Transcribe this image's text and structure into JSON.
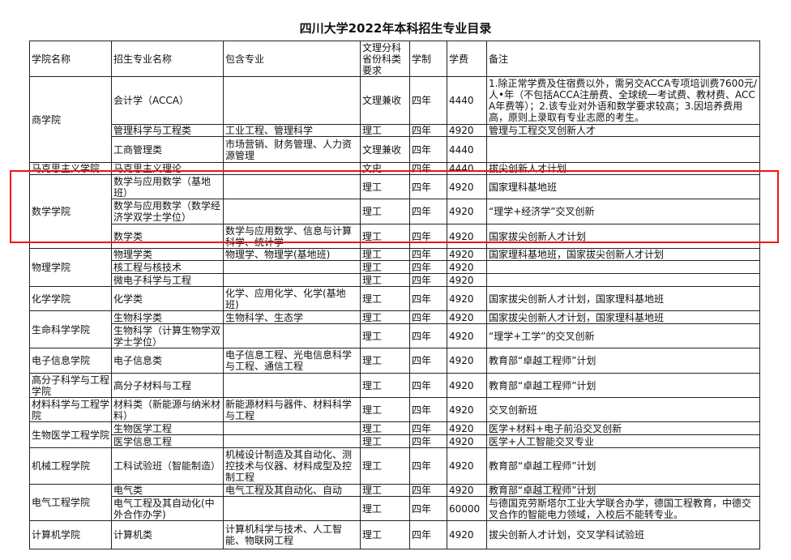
{
  "title": "四川大学2022年本科招生专业目录",
  "headers": [
    "学院名称",
    "招生专业名称",
    "包含专业",
    "文理分科省份科类要求",
    "学制",
    "学费",
    "备注"
  ],
  "highlight_color": "#f01414",
  "colleges": [
    {
      "name": "商学院",
      "majors": [
        {
          "major": "会计学（ACCA）",
          "includes": "",
          "category": "文理兼收",
          "duration": "四年",
          "fee": "4440",
          "note": "1.除正常学费及住宿费以外，需另交ACCA专项培训费7600元/人•年（不包括ACCA注册费、全球统一考试费、教材费、ACCA年费等）；2.该专业对外语和数学要求较高；3.因培养费用高，原则上录取有专业志愿的考生。"
        },
        {
          "major": "管理科学与工程类",
          "includes": "工业工程、管理科学",
          "category": "理工",
          "duration": "四年",
          "fee": "4920",
          "note": "管理与工程交叉创新人才"
        },
        {
          "major": "工商管理类",
          "includes": "市场营销、财务管理、人力资源管理",
          "category": "文理兼收",
          "duration": "四年",
          "fee": "4440",
          "note": ""
        }
      ]
    },
    {
      "name": "马克思主义学院",
      "majors": [
        {
          "major": "马克思主义理论",
          "includes": "",
          "category": "文史",
          "duration": "四年",
          "fee": "4440",
          "note": "拔尖创新人才计划"
        }
      ]
    },
    {
      "name": "数学学院",
      "majors": [
        {
          "major": "数学与应用数学（基地班）",
          "includes": "",
          "category": "理工",
          "duration": "四年",
          "fee": "4920",
          "note": "国家理科基地班"
        },
        {
          "major": "数学与应用数学（数学经济学双学士学位）",
          "includes": "",
          "category": "理工",
          "duration": "四年",
          "fee": "4920",
          "note": "“理学+经济学”交叉创新"
        },
        {
          "major": "数学类",
          "includes": "数学与应用数学、信息与计算科学、统计学",
          "category": "理工",
          "duration": "四年",
          "fee": "4920",
          "note": "国家拔尖创新人才计划"
        }
      ]
    },
    {
      "name": "物理学院",
      "majors": [
        {
          "major": "物理学类",
          "includes": "物理学、物理学(基地班)",
          "category": "理工",
          "duration": "四年",
          "fee": "4920",
          "note": "国家理科基地班，国家拔尖创新人才计划"
        },
        {
          "major": "核工程与核技术",
          "includes": "",
          "category": "理工",
          "duration": "四年",
          "fee": "4920",
          "note": ""
        },
        {
          "major": "微电子科学与工程",
          "includes": "",
          "category": "理工",
          "duration": "四年",
          "fee": "4920",
          "note": ""
        }
      ]
    },
    {
      "name": "化学学院",
      "majors": [
        {
          "major": "化学类",
          "includes": "化学、应用化学、化学(基地班)",
          "category": "理工",
          "duration": "四年",
          "fee": "4920",
          "note": "国家拔尖创新人才计划，国家理科基地班"
        }
      ]
    },
    {
      "name": "生命科学学院",
      "majors": [
        {
          "major": "生物科学类",
          "includes": "生物科学、生态学",
          "category": "理工",
          "duration": "四年",
          "fee": "4920",
          "note": "国家拔尖创新人才计划，国家理科基地班"
        },
        {
          "major": "生物科学（计算生物学双学士学位）",
          "includes": "",
          "category": "理工",
          "duration": "四年",
          "fee": "4920",
          "note": "“理学+工学”的交叉创新"
        }
      ]
    },
    {
      "name": "电子信息学院",
      "majors": [
        {
          "major": "电子信息类",
          "includes": "电子信息工程、光电信息科学与工程、通信工程",
          "category": "理工",
          "duration": "四年",
          "fee": "4920",
          "note": "教育部“卓越工程师”计划"
        }
      ]
    },
    {
      "name": "高分子科学与工程学院",
      "majors": [
        {
          "major": "高分子材料与工程",
          "includes": "",
          "category": "理工",
          "duration": "四年",
          "fee": "4920",
          "note": "教育部“卓越工程师”计划"
        }
      ]
    },
    {
      "name": "材料科学与工程学院",
      "majors": [
        {
          "major": "材料类（新能源与纳米材料）",
          "includes": "新能源材料与器件、材料科学与工程",
          "category": "理工",
          "duration": "四年",
          "fee": "4920",
          "note": "交叉创新班"
        }
      ]
    },
    {
      "name": "生物医学工程学院",
      "majors": [
        {
          "major": "生物医学工程",
          "includes": "",
          "category": "理工",
          "duration": "四年",
          "fee": "4920",
          "note": "医学+材料+电子前沿交叉创新"
        },
        {
          "major": "医学信息工程",
          "includes": "",
          "category": "理工",
          "duration": "四年",
          "fee": "4920",
          "note": "医学+人工智能交叉专业"
        }
      ]
    },
    {
      "name": "机械工程学院",
      "majors": [
        {
          "major": "工科试验班（智能制造）",
          "includes": "机械设计制造及其自动化、测控技术与仪器、材料成型及控制工程",
          "category": "理工",
          "duration": "四年",
          "fee": "4920",
          "note": "教育部“卓越工程师”计划"
        }
      ]
    },
    {
      "name": "电气工程学院",
      "majors": [
        {
          "major": "电气类",
          "includes": "电气工程及其自动化、自动",
          "category": "理工",
          "duration": "四年",
          "fee": "4920",
          "note": "教育部“卓越工程师”计划"
        },
        {
          "major": "电气工程及其自动化(中外合作办学)",
          "includes": "",
          "category": "理工",
          "duration": "四年",
          "fee": "60000",
          "note": "与德国克劳斯塔尔工业大学联合办学，德国工程教育，中德交叉合作的智能电力领域，入校后不能转专业。"
        }
      ]
    },
    {
      "name": "计算机学院",
      "majors": [
        {
          "major": "计算机类",
          "includes": "计算机科学与技术、人工智能、物联网工程",
          "category": "理工",
          "duration": "四年",
          "fee": "4920",
          "note": "拔尖创新人才计划，交叉学科试验班"
        }
      ]
    }
  ]
}
